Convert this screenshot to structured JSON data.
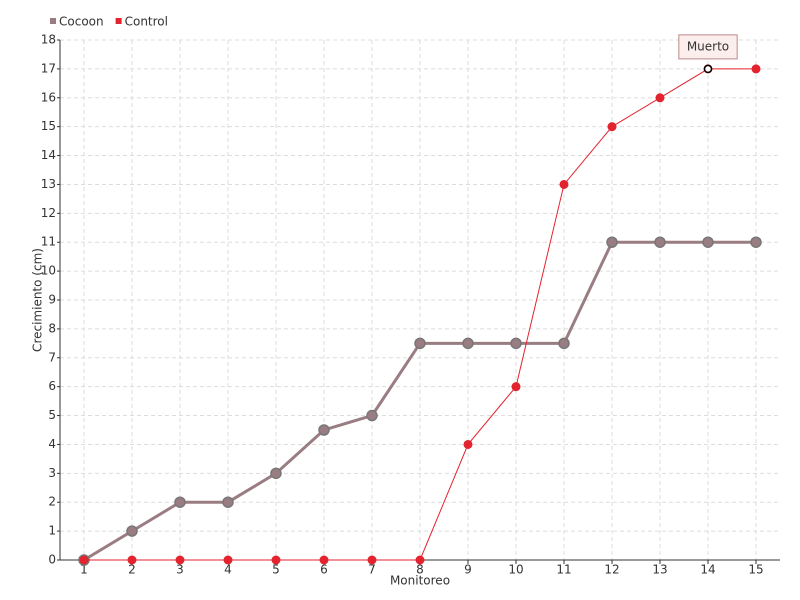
{
  "chart_data": {
    "type": "line",
    "x_label": "Monitoreo",
    "y_label": "Crecimiento (cm)",
    "categories": [
      "1",
      "2",
      "3",
      "4",
      "5",
      "6",
      "7",
      "8",
      "9",
      "10",
      "11",
      "12",
      "13",
      "14",
      "15"
    ],
    "series": [
      {
        "name": "Cocoon",
        "color": "#9a7d82",
        "values": [
          0,
          1,
          2,
          2,
          3,
          4.5,
          5,
          7.5,
          7.5,
          7.5,
          7.5,
          11,
          11,
          11,
          11
        ]
      },
      {
        "name": "Control",
        "color": "#e3232e",
        "values": [
          0,
          0,
          0,
          0,
          0,
          0,
          0,
          0,
          4,
          6,
          13,
          15,
          16,
          17,
          17
        ]
      }
    ],
    "ylim": [
      0,
      18
    ],
    "yticks": [
      0,
      1,
      2,
      3,
      4,
      5,
      6,
      7,
      8,
      9,
      10,
      11,
      12,
      13,
      14,
      15,
      16,
      17,
      18
    ],
    "grid": true,
    "legend": "top-left",
    "annotations": [
      {
        "text": "Muerto",
        "series": "Control",
        "category": "14"
      }
    ]
  }
}
